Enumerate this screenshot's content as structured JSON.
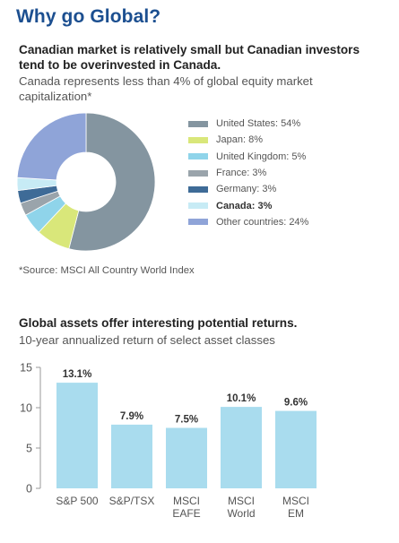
{
  "page": {
    "title": "Why go Global?"
  },
  "market_section": {
    "headline": "Canadian market is relatively small but Canadian investors tend to be overinvested in Canada.",
    "subheadline": "Canada represents less than 4% of global equity market capitalization*",
    "source": "*Source: MSCI All Country World Index"
  },
  "returns_section": {
    "headline": "Global assets offer interesting potential returns.",
    "subheadline": "10-year annualized return of select asset classes"
  },
  "chart_data": [
    {
      "type": "pie",
      "style": "donut",
      "title": "",
      "legend_position": "right",
      "slices": [
        {
          "label": "United States: 54%",
          "name": "United States",
          "value": 54,
          "color": "#8495a0"
        },
        {
          "label": "Japan: 8%",
          "name": "Japan",
          "value": 8,
          "color": "#d9e77a"
        },
        {
          "label": "United Kingdom: 5%",
          "name": "United Kingdom",
          "value": 5,
          "color": "#8fd4ea"
        },
        {
          "label": "France: 3%",
          "name": "France",
          "value": 3,
          "color": "#9aa4ab"
        },
        {
          "label": "Germany: 3%",
          "name": "Germany",
          "value": 3,
          "color": "#3e6b97"
        },
        {
          "label": "Canada: 3%",
          "name": "Canada",
          "value": 3,
          "color": "#c7ebf5",
          "emphasized": true
        },
        {
          "label": "Other countries: 24%",
          "name": "Other countries",
          "value": 24,
          "color": "#8fa4d8"
        }
      ]
    },
    {
      "type": "bar",
      "title": "",
      "xlabel": "",
      "ylabel": "",
      "categories": [
        [
          "S&P 500"
        ],
        [
          "S&P/TSX"
        ],
        [
          "MSCI",
          "EAFE"
        ],
        [
          "MSCI",
          "World"
        ],
        [
          "MSCI",
          "EM"
        ]
      ],
      "values": [
        13.1,
        7.9,
        7.5,
        10.1,
        9.6
      ],
      "value_labels": [
        "13.1%",
        "7.9%",
        "7.5%",
        "10.1%",
        "9.6%"
      ],
      "ylim": [
        0,
        15
      ],
      "yticks": [
        0,
        5,
        10,
        15
      ],
      "grid": false,
      "bar_color": "#a9dcee"
    }
  ]
}
